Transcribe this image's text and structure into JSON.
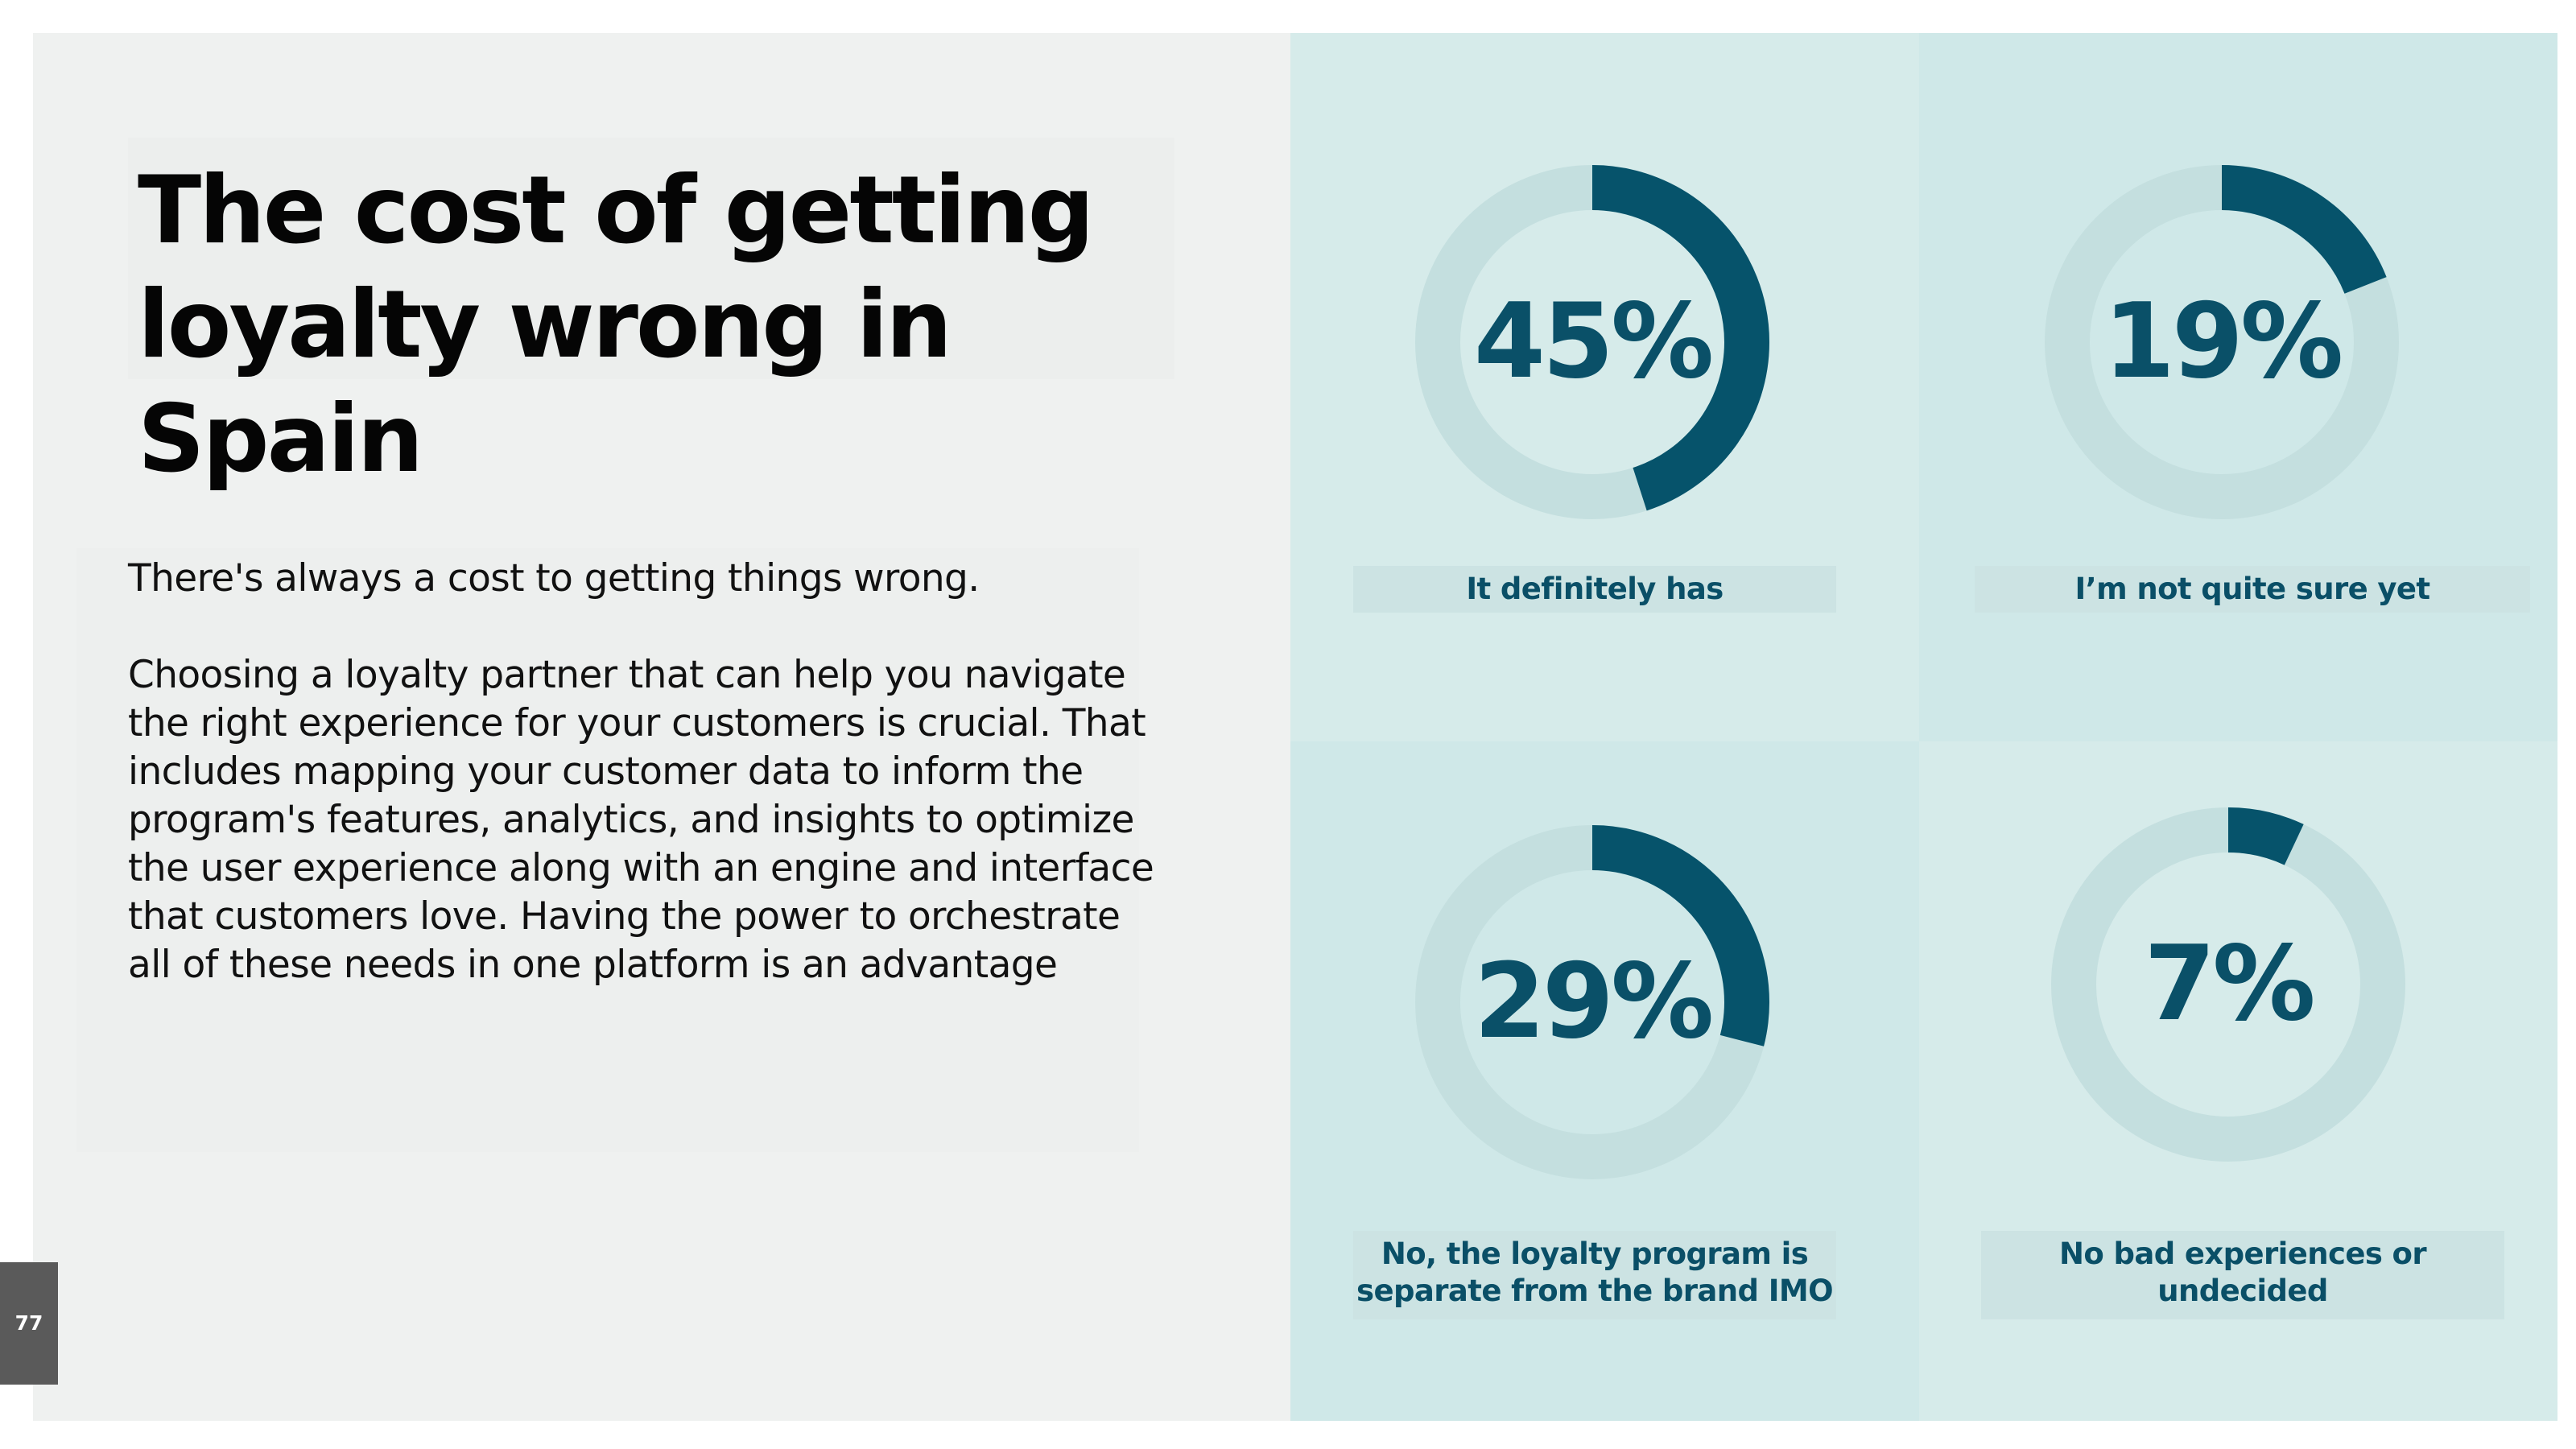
{
  "title": "The cost of getting loyalty wrong in Spain",
  "body": {
    "intro": "There's always a cost to getting things wrong.",
    "paragraph": "Choosing a loyalty partner that can help you navigate the right experience for your customers is crucial. That includes mapping your customer data to inform the program's features, analytics, and insights to optimize the user experience along with an engine and interface that customers love. Having the power to orchestrate all of these needs in one platform is an advantage"
  },
  "page_number": "77",
  "colors": {
    "accent": "#06536b",
    "track": "#c4dfdf",
    "left_bg": "#eff1f0",
    "panel_bg": "#d6ebea"
  },
  "stats": [
    {
      "value": 45,
      "display": "45%",
      "label": "It definitely has"
    },
    {
      "value": 19,
      "display": "19%",
      "label": "I’m not quite sure yet"
    },
    {
      "value": 29,
      "display": "29%",
      "label": "No, the loyalty program is separate from the brand IMO"
    },
    {
      "value": 7,
      "display": "7%",
      "label": "No bad experiences or undecided"
    }
  ]
}
